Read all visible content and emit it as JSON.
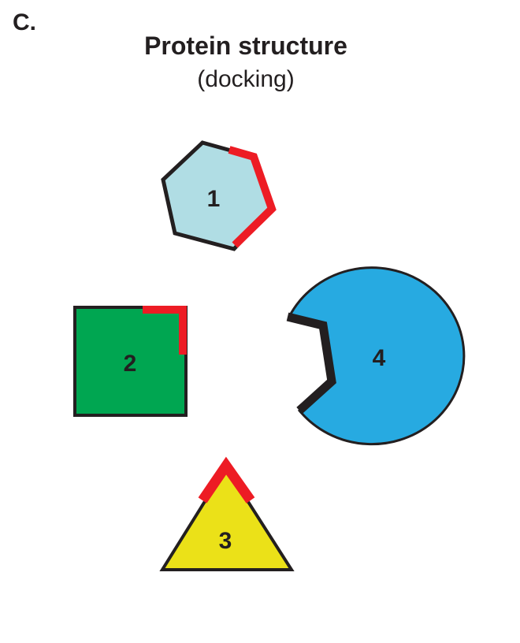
{
  "panel_label": "C.",
  "title": "Protein structure",
  "subtitle": "(docking)",
  "colors": {
    "outline": "#231f20",
    "binding_site": "#ed1c24",
    "hexagon_fill": "#b0dde4",
    "square_fill": "#00a651",
    "triangle_fill": "#ebe118",
    "circle_fill": "#27aae1"
  },
  "shapes": [
    {
      "id": "hexagon",
      "label": "1",
      "shape": "hexagon",
      "binding_site": true
    },
    {
      "id": "square",
      "label": "2",
      "shape": "square",
      "binding_site": true
    },
    {
      "id": "triangle",
      "label": "3",
      "shape": "triangle",
      "binding_site": true
    },
    {
      "id": "circle",
      "label": "4",
      "shape": "circle-with-notch",
      "binding_site": false
    }
  ]
}
